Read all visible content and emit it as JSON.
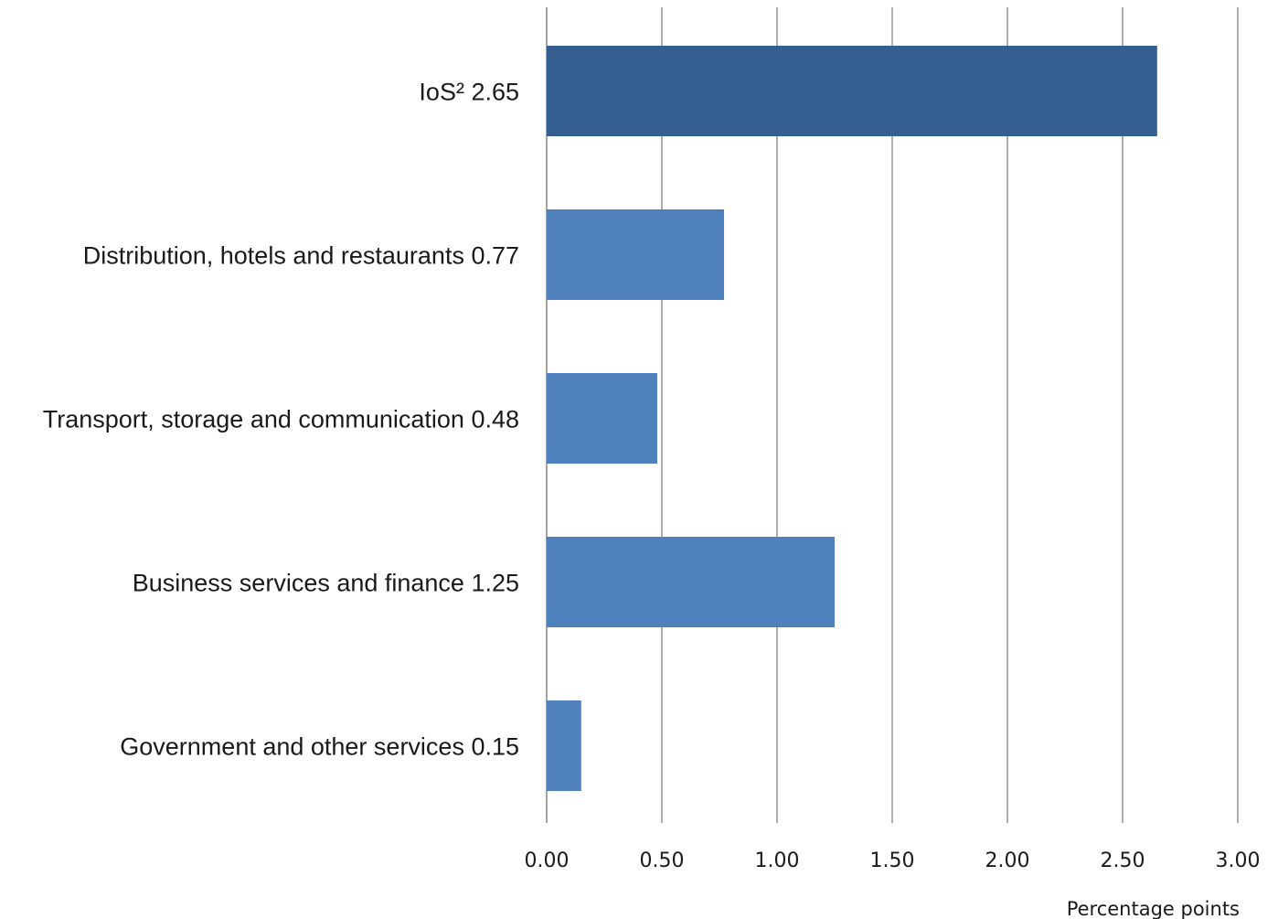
{
  "chart_data": {
    "type": "bar",
    "orientation": "horizontal",
    "categories": [
      "IoS² 2.65",
      "Distribution, hotels and restaurants 0.77",
      "Transport, storage and communication 0.48",
      "Business services and finance 1.25",
      "Government and other services 0.15"
    ],
    "values": [
      2.65,
      0.77,
      0.48,
      1.25,
      0.15
    ],
    "bar_colors": [
      "#365f91",
      "#4f81bd",
      "#4f81bd",
      "#4f81bd",
      "#4f81bd"
    ],
    "xlim": [
      0,
      3.0
    ],
    "xticks": [
      "0.00",
      "0.50",
      "1.00",
      "1.50",
      "2.00",
      "2.50",
      "3.00"
    ],
    "xlabel": "Percentage points",
    "title": "",
    "grid": true,
    "gridline_color": "#8c8c8c"
  }
}
